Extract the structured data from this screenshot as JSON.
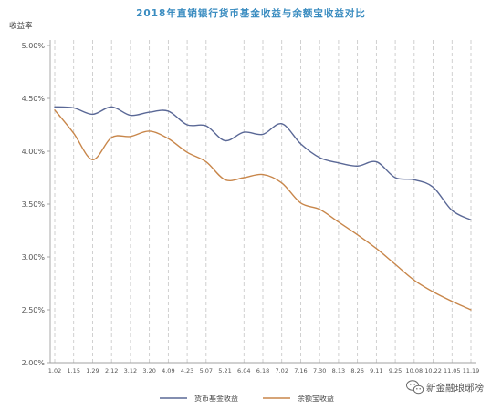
{
  "chart_data": {
    "type": "line",
    "title": "2018年直销银行货币基金收益与余额宝收益对比",
    "title_color": "#3a8cc0",
    "xlabel": "",
    "ylabel": "收益率",
    "categories": [
      "1.02",
      "1.15",
      "1.29",
      "2.12",
      "3.12",
      "3.20",
      "4.09",
      "4.23",
      "5.07",
      "5.21",
      "6.04",
      "6.18",
      "7.02",
      "7.16",
      "7.30",
      "8.13",
      "8.26",
      "9.11",
      "9.25",
      "10.08",
      "10.22",
      "11.05",
      "11.19"
    ],
    "yticks": [
      "5.00%",
      "4.50%",
      "4.00%",
      "3.50%",
      "3.00%",
      "2.50%",
      "2.00%"
    ],
    "ylim": [
      2.0,
      5.0
    ],
    "grid": {
      "vertical": true,
      "horizontal": false
    },
    "legend": "bottom",
    "series": [
      {
        "name": "货币基金收益",
        "color": "#5a6896",
        "values": [
          4.42,
          4.41,
          4.35,
          4.42,
          4.34,
          4.37,
          4.38,
          4.25,
          4.24,
          4.1,
          4.18,
          4.16,
          4.26,
          4.07,
          3.94,
          3.89,
          3.86,
          3.9,
          3.75,
          3.73,
          3.66,
          3.44,
          3.35
        ]
      },
      {
        "name": "余额宝收益",
        "color": "#c8864a",
        "values": [
          4.39,
          4.17,
          3.92,
          4.13,
          4.14,
          4.19,
          4.12,
          3.99,
          3.9,
          3.73,
          3.75,
          3.78,
          3.7,
          3.51,
          3.45,
          3.33,
          3.21,
          3.08,
          2.93,
          2.78,
          2.67,
          2.58,
          2.5
        ]
      }
    ]
  },
  "watermark": {
    "text": "新金融琅琊榜",
    "icon": "wechat-icon"
  }
}
